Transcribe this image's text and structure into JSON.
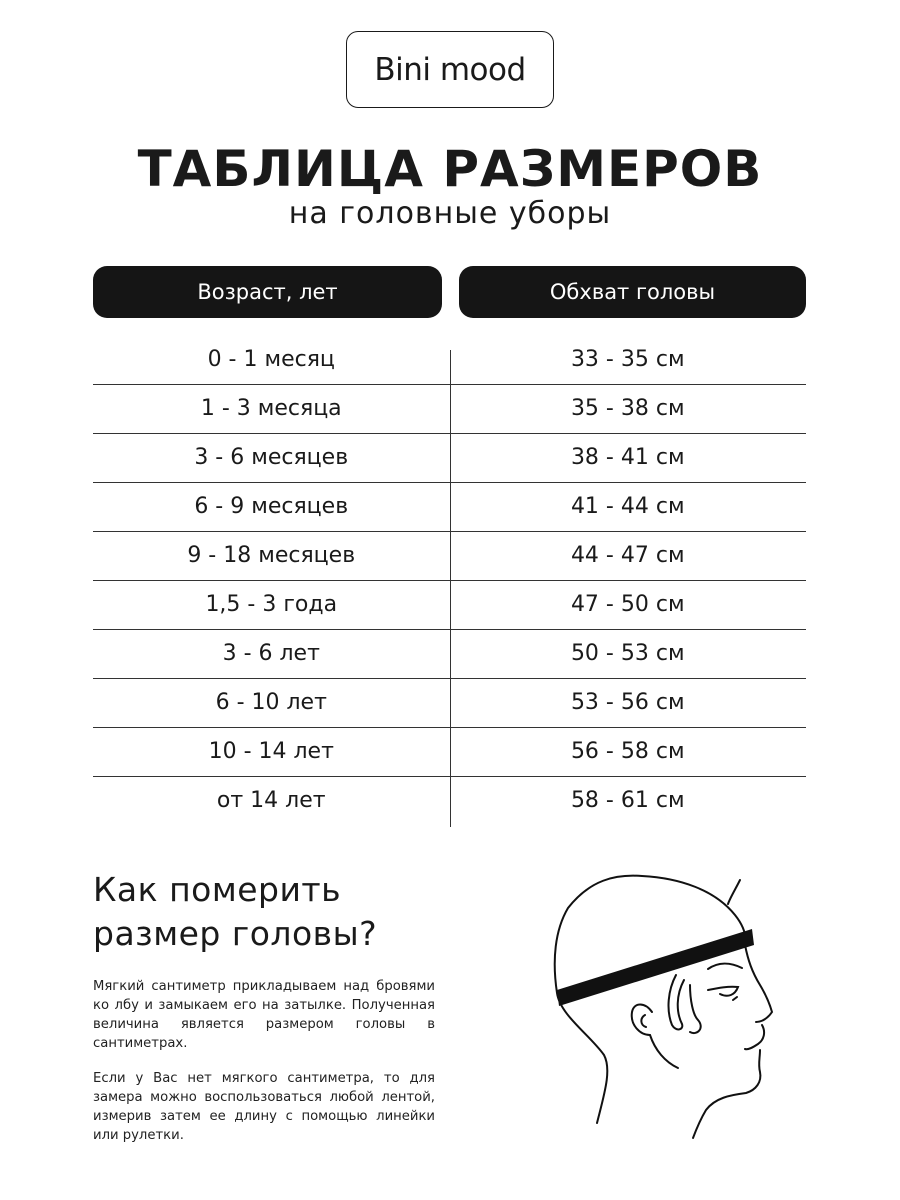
{
  "brand": "Bini mood",
  "title": "ТАБЛИЦА РАЗМЕРОВ",
  "subtitle": "на головные уборы",
  "table": {
    "headers": [
      "Возраст, лет",
      "Обхват головы"
    ],
    "rows": [
      [
        "0 - 1 месяц",
        "33 - 35 см"
      ],
      [
        "1 - 3 месяца",
        "35 - 38 см"
      ],
      [
        "3 - 6 месяцев",
        "38 - 41 см"
      ],
      [
        "6 - 9 месяцев",
        "41 - 44 см"
      ],
      [
        "9 - 18 месяцев",
        "44 - 47 см"
      ],
      [
        "1,5 - 3 года",
        "47 - 50 см"
      ],
      [
        "3 - 6 лет",
        "50 - 53 см"
      ],
      [
        "6 - 10 лет",
        "53 - 56 см"
      ],
      [
        "10 - 14 лет",
        "56 - 58 см"
      ],
      [
        "от 14 лет",
        "58 - 61 см"
      ]
    ]
  },
  "how": {
    "heading_line1": "Как померить",
    "heading_line2": "размер головы?",
    "paragraph1": "Мягкий сантиметр прикладываем над бровями ко лбу и замыкаем его на затылке. Полученная величина является размером головы в сантиметрах.",
    "paragraph2": "Если у Вас нет мягкого сантиметра, то для замера можно воспользоваться любой лентой, измерив затем ее длину с помощью линейки или рулетки."
  },
  "illustration": "head-measuring-icon"
}
